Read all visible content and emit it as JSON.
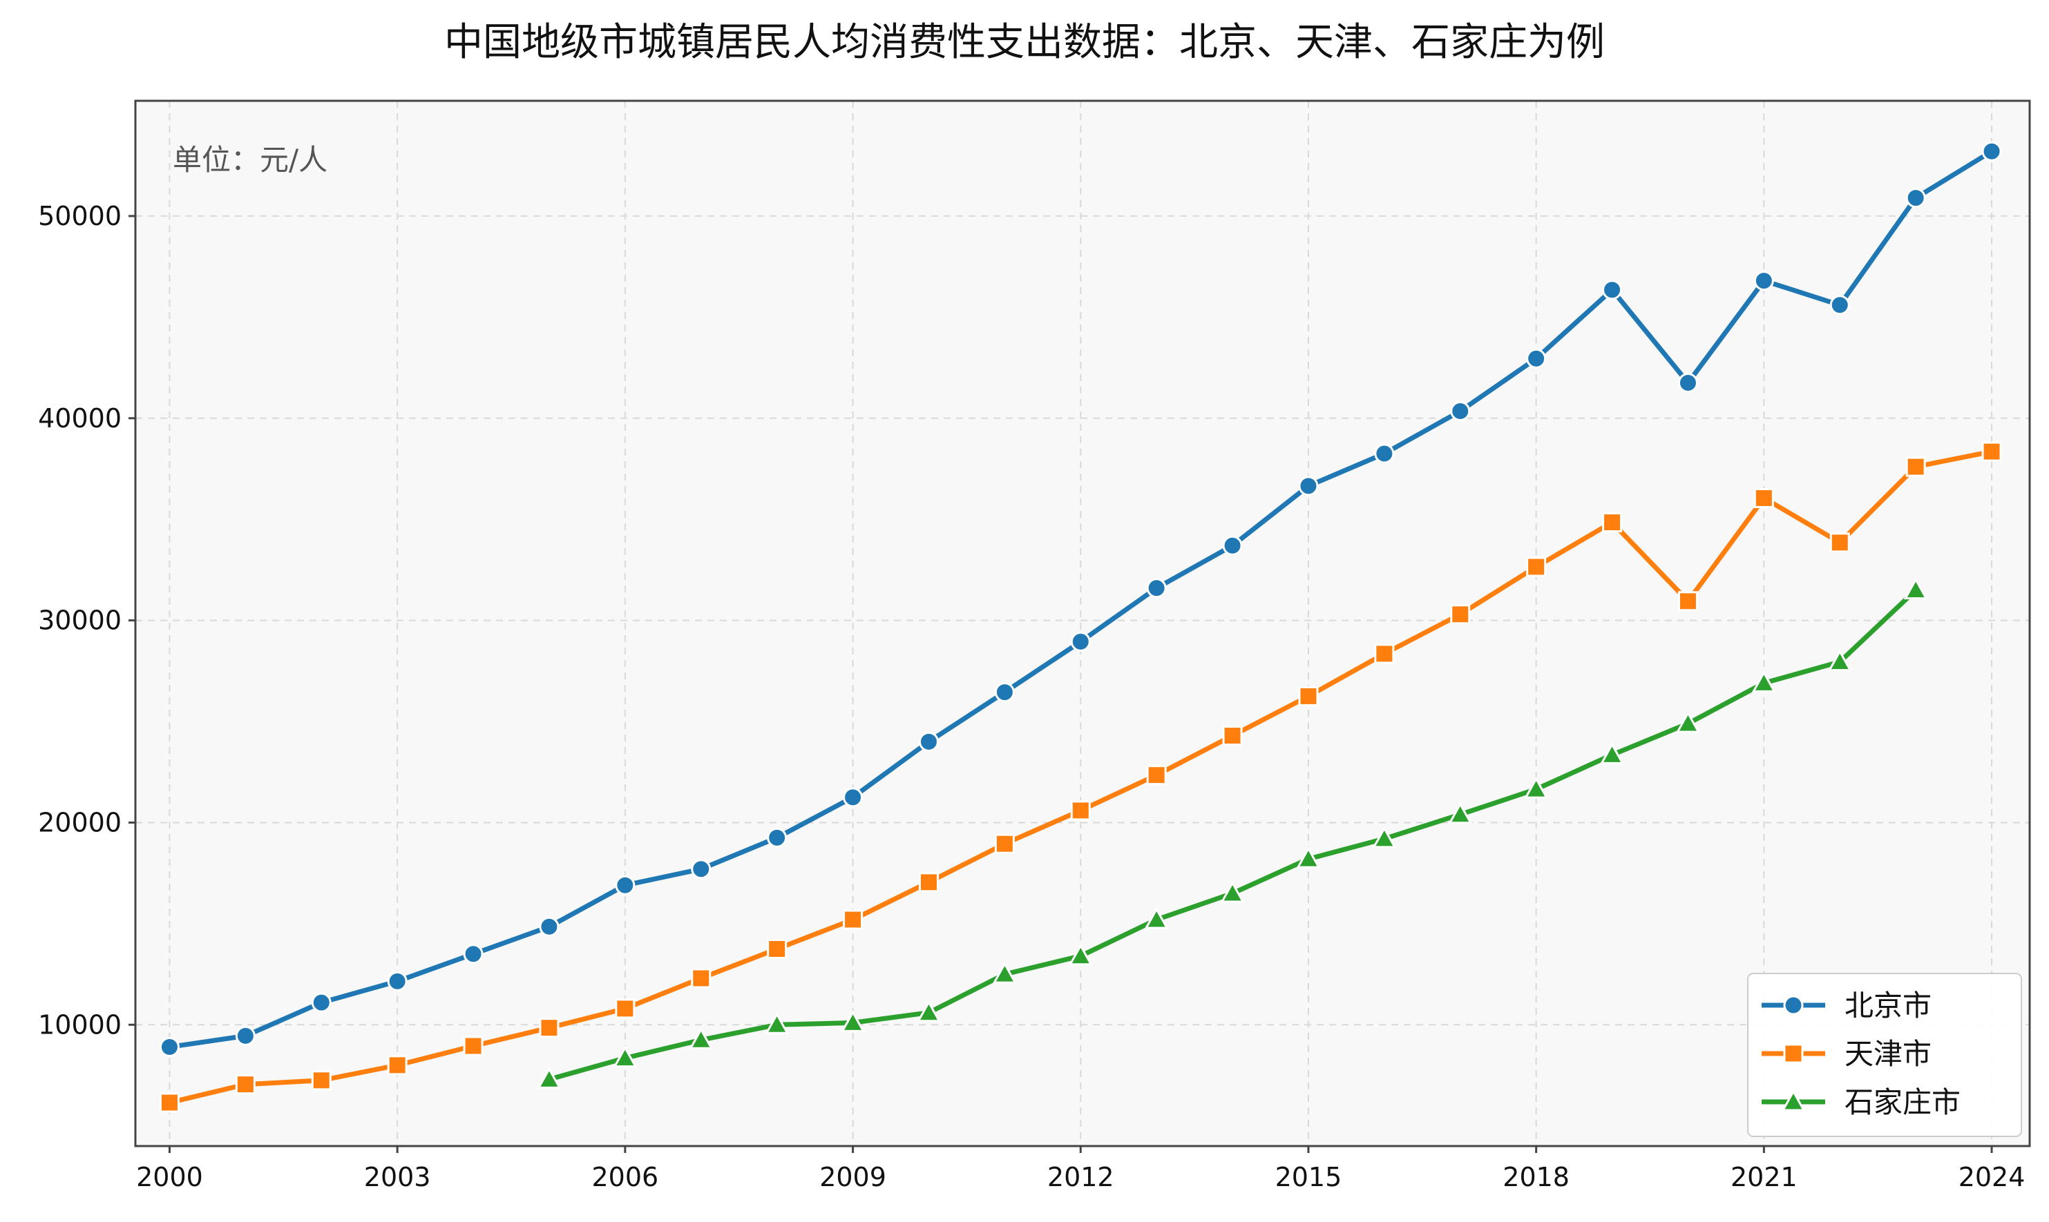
{
  "chart_data": {
    "type": "line",
    "title": "中国地级市城镇居民人均消费性支出数据：北京、天津、石家庄为例",
    "unit_note": "单位：元/人",
    "xlabel": "",
    "ylabel": "",
    "x": [
      2000,
      2001,
      2002,
      2003,
      2004,
      2005,
      2006,
      2007,
      2008,
      2009,
      2010,
      2011,
      2012,
      2013,
      2014,
      2015,
      2016,
      2017,
      2018,
      2019,
      2020,
      2021,
      2022,
      2023,
      2024
    ],
    "xlim": [
      1999.55,
      2024.5
    ],
    "ylim": [
      4000,
      55700
    ],
    "x_ticks": [
      2000,
      2003,
      2006,
      2009,
      2012,
      2015,
      2018,
      2021,
      2024
    ],
    "y_ticks": [
      10000,
      20000,
      30000,
      40000,
      50000
    ],
    "grid": true,
    "legend_position": "lower-right",
    "series": [
      {
        "name": "北京市",
        "color": "#1f77b4",
        "marker": "circle",
        "values": [
          8900,
          9450,
          11100,
          12150,
          13500,
          14850,
          16900,
          17700,
          19250,
          21250,
          24000,
          26450,
          28950,
          31600,
          33700,
          36650,
          38250,
          40350,
          42950,
          46350,
          41750,
          46800,
          45600,
          50900,
          53200
        ]
      },
      {
        "name": "天津市",
        "color": "#ff7f0e",
        "marker": "square",
        "values": [
          6150,
          7050,
          7250,
          8000,
          8950,
          9850,
          10800,
          12300,
          13750,
          15200,
          17050,
          18950,
          20600,
          22350,
          24300,
          26250,
          28350,
          30300,
          32650,
          34850,
          30950,
          36050,
          33850,
          37600,
          38350
        ]
      },
      {
        "name": "石家庄市",
        "color": "#2ca02c",
        "marker": "triangle",
        "values": [
          null,
          null,
          null,
          null,
          null,
          7300,
          8350,
          9250,
          10000,
          10100,
          10600,
          12500,
          13400,
          15200,
          16500,
          18200,
          19200,
          20400,
          21650,
          23350,
          24900,
          26900,
          27950,
          31500,
          null
        ]
      }
    ]
  }
}
